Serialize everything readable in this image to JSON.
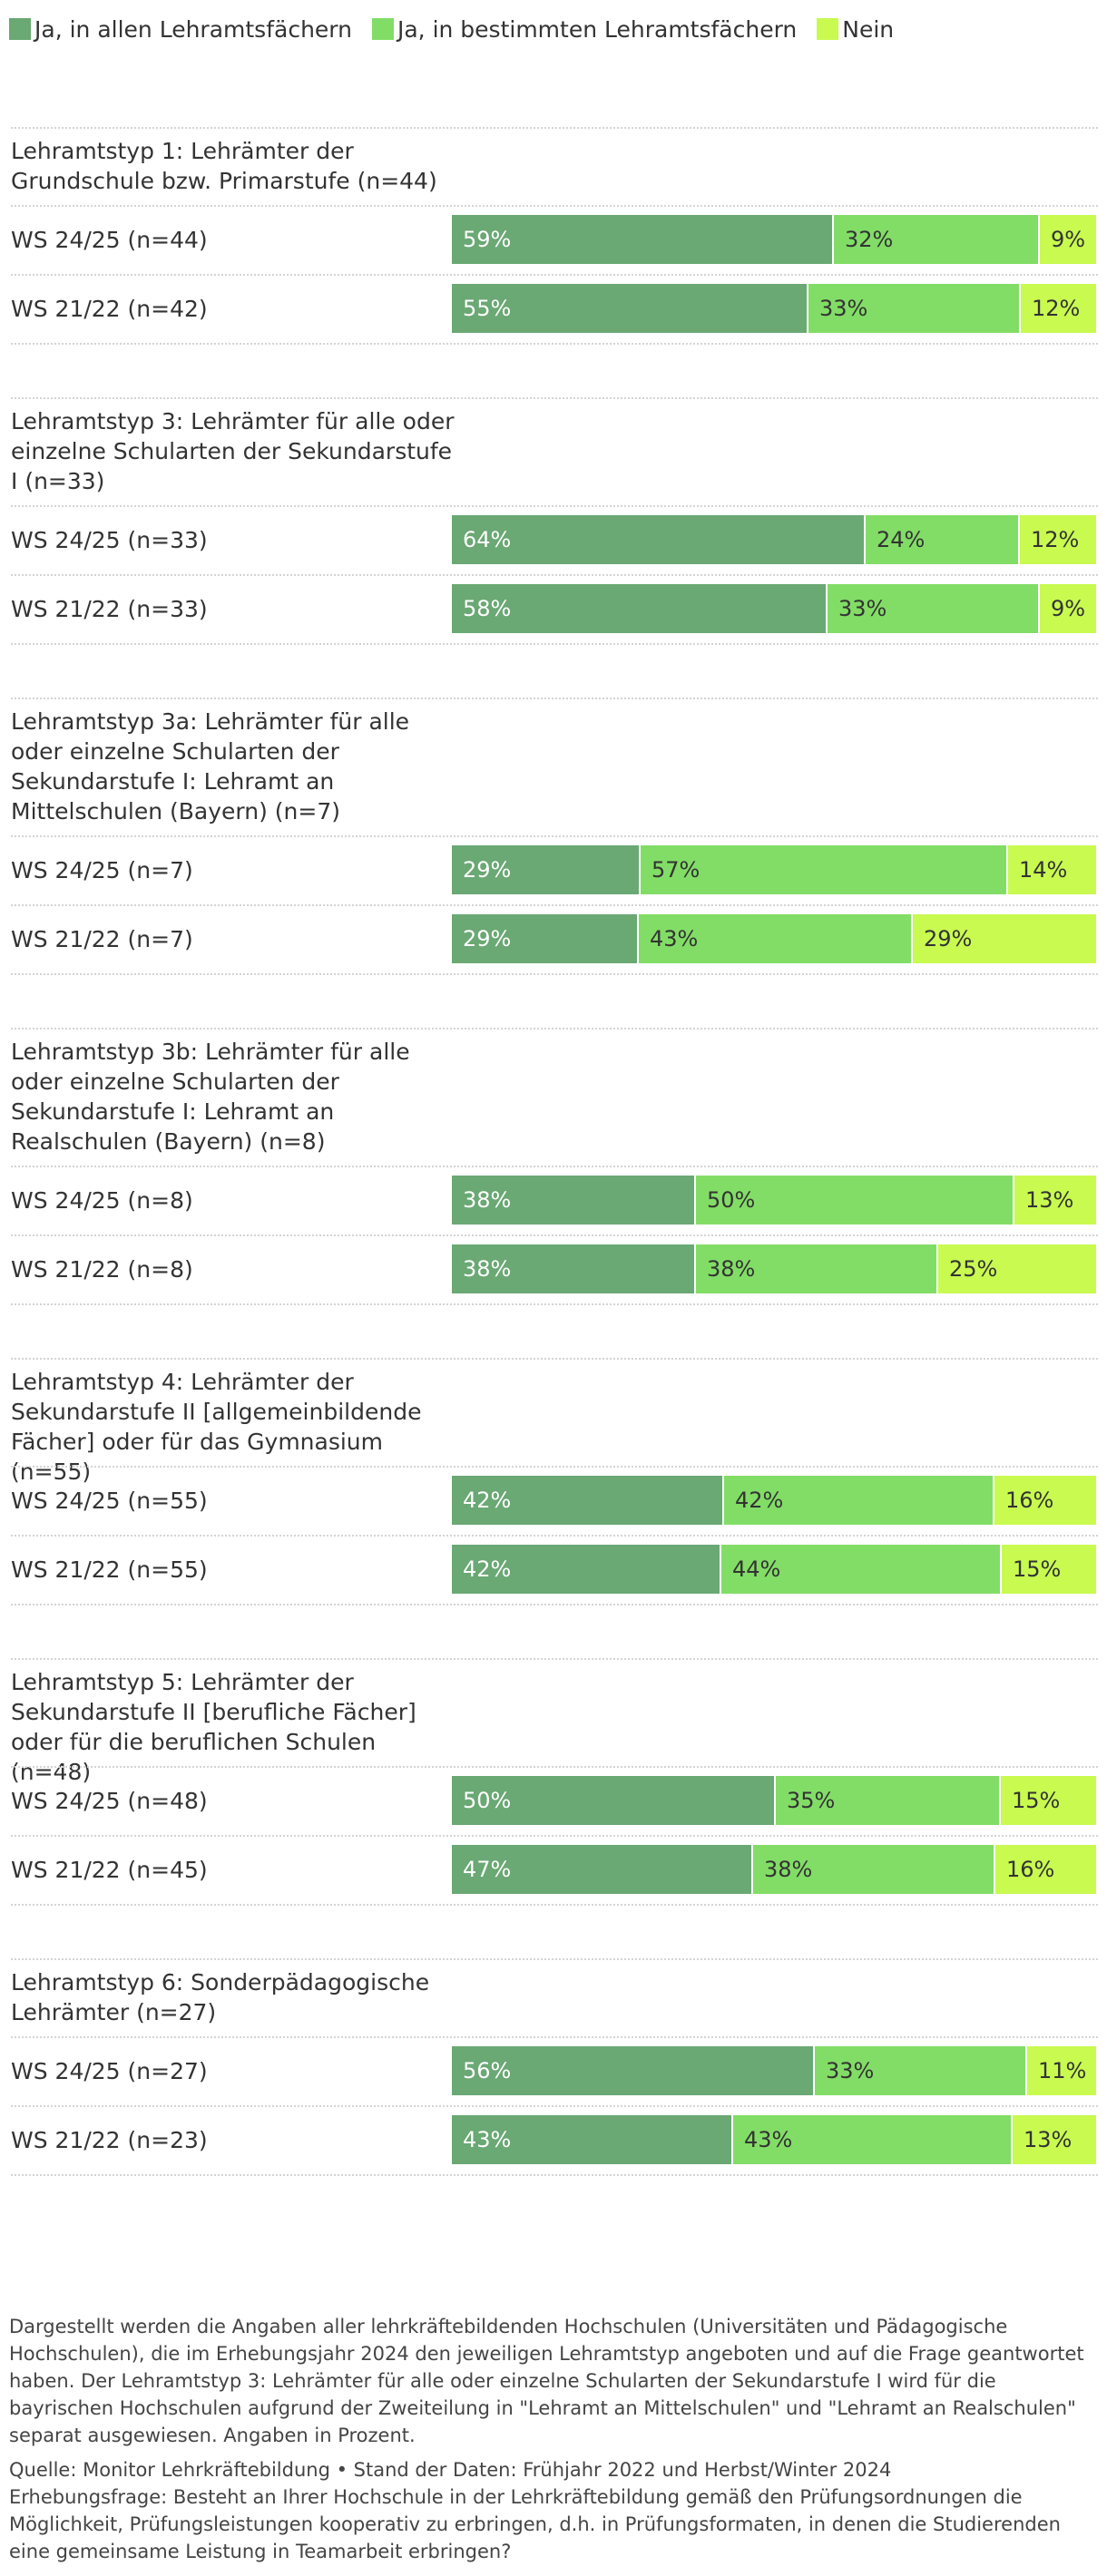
{
  "legend": [
    {
      "label": "Ja, in allen Lehramtsfächern",
      "color": "#6aa874"
    },
    {
      "label": "Ja, in bestimmten Lehramtsfächern",
      "color": "#82dd66"
    },
    {
      "label": "Nein",
      "color": "#c8fa50"
    }
  ],
  "chart_data": {
    "type": "bar",
    "orientation": "horizontal",
    "stacked": "percent",
    "series_names": [
      "Ja, in allen Lehramtsfächern",
      "Ja, in bestimmten Lehramtsfächern",
      "Nein"
    ],
    "value_suffix": "%",
    "groups": [
      {
        "title": "Lehramtstyp 1: Lehrämter der Grundschule bzw. Primarstufe (n=44)",
        "rows": [
          {
            "label": "WS 24/25 (n=44)",
            "values": [
              59,
              32,
              9
            ]
          },
          {
            "label": "WS 21/22 (n=42)",
            "values": [
              55,
              33,
              12
            ]
          }
        ]
      },
      {
        "title": "Lehramtstyp 3: Lehrämter für alle oder einzelne Schularten der Sekundarstufe I (n=33)",
        "rows": [
          {
            "label": "WS 24/25 (n=33)",
            "values": [
              64,
              24,
              12
            ]
          },
          {
            "label": "WS 21/22 (n=33)",
            "values": [
              58,
              33,
              9
            ]
          }
        ]
      },
      {
        "title": "Lehramtstyp 3a: Lehrämter für alle oder einzelne Schularten der Sekundarstufe I: Lehramt an Mittelschulen (Bayern) (n=7)",
        "rows": [
          {
            "label": "WS 24/25 (n=7)",
            "values": [
              29,
              57,
              14
            ]
          },
          {
            "label": "WS 21/22 (n=7)",
            "values": [
              29,
              43,
              29
            ]
          }
        ]
      },
      {
        "title": "Lehramtstyp 3b: Lehrämter für alle oder einzelne Schularten der Sekundarstufe I: Lehramt an Realschulen (Bayern) (n=8)",
        "rows": [
          {
            "label": "WS 24/25 (n=8)",
            "values": [
              38,
              50,
              13
            ]
          },
          {
            "label": "WS 21/22 (n=8)",
            "values": [
              38,
              38,
              25
            ]
          }
        ]
      },
      {
        "title": "Lehramtstyp 4: Lehrämter der Sekundarstufe II [allgemeinbildende Fächer] oder für das Gymnasium (n=55)",
        "rows": [
          {
            "label": "WS 24/25 (n=55)",
            "values": [
              42,
              42,
              16
            ]
          },
          {
            "label": "WS 21/22 (n=55)",
            "values": [
              42,
              44,
              15
            ]
          }
        ]
      },
      {
        "title": "Lehramtstyp 5: Lehrämter der Sekundarstufe II [berufliche Fächer] oder für die beruflichen Schulen (n=48)",
        "rows": [
          {
            "label": "WS 24/25 (n=48)",
            "values": [
              50,
              35,
              15
            ]
          },
          {
            "label": "WS 21/22 (n=45)",
            "values": [
              47,
              38,
              16
            ]
          }
        ]
      },
      {
        "title": "Lehramtstyp 6: Sonderpädagogische Lehrämter (n=27)",
        "rows": [
          {
            "label": "WS 24/25 (n=27)",
            "values": [
              56,
              33,
              11
            ]
          },
          {
            "label": "WS 21/22 (n=23)",
            "values": [
              43,
              43,
              13
            ]
          }
        ]
      }
    ]
  },
  "notes": {
    "description": "Dargestellt werden die Angaben aller lehrkräftebildenden Hochschulen (Universitäten und Pädagogische Hochschulen), die im Erhebungsjahr 2024 den jeweiligen Lehramtstyp angeboten und auf die Frage geantwortet haben. Der Lehramtstyp 3: Lehrämter für alle oder einzelne Schularten der Sekundarstufe I wird für die bayrischen Hochschulen aufgrund der Zweiteilung in \"Lehramt an Mittelschulen\" und \"Lehramt an Realschulen\" separat ausgewiesen. Angaben in Prozent.",
    "source": "Quelle: Monitor Lehrkräftebildung • Stand der Daten: Frühjahr 2022 und Herbst/Winter 2024",
    "question": "Erhebungsfrage: Besteht an Ihrer Hochschule in der Lehrkräftebildung gemäß den Prüfungsordnungen die Möglichkeit, Prüfungsleistungen kooperativ zu erbringen, d.h. in Prüfungsformaten, in denen die Studierenden eine gemeinsame Leistung in Teamarbeit erbringen?"
  }
}
